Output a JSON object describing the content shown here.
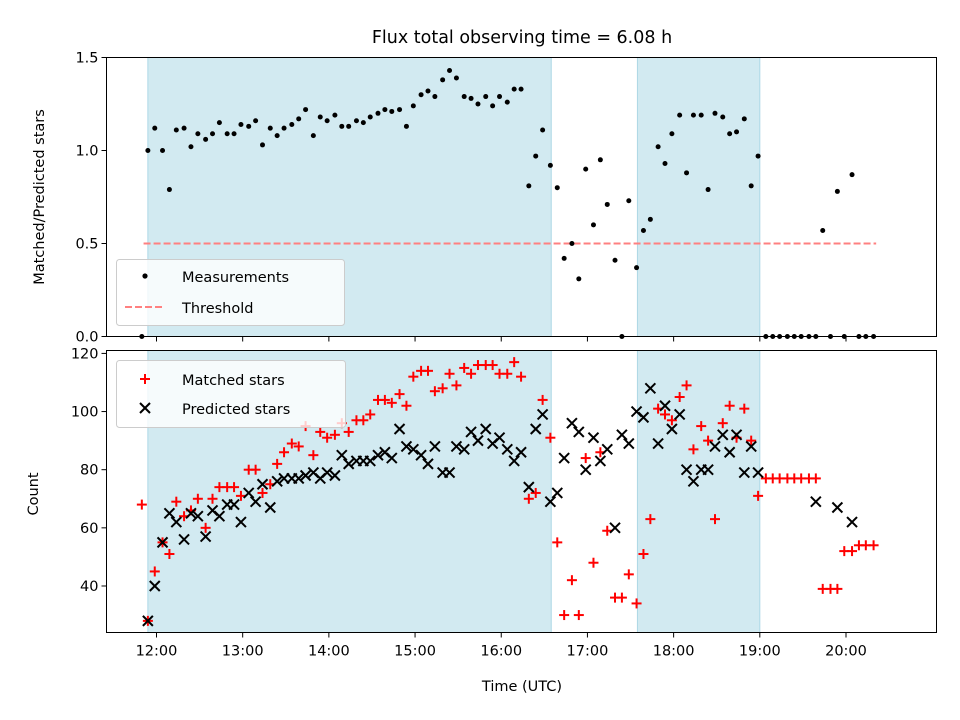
{
  "chart_data": [
    {
      "type": "scatter",
      "title": "Flux total observing time = 6.08 h",
      "ylabel": "Matched/Predicted stars",
      "xlabel": "",
      "xlim": [
        11.42,
        21.05
      ],
      "ylim": [
        0,
        1.5
      ],
      "xticks": [
        12,
        13,
        14,
        15,
        16,
        17,
        18,
        19,
        20
      ],
      "yticks": [
        0.0,
        0.5,
        1.0,
        1.5
      ],
      "ytick_labels": [
        "0.0",
        "0.5",
        "1.0",
        "1.5"
      ],
      "grid": false,
      "legend_position": "lower-left",
      "shaded_spans": [
        [
          11.9,
          16.58
        ],
        [
          17.58,
          19.0
        ]
      ],
      "shade_color": "#add8e6",
      "threshold": {
        "name": "Threshold",
        "y": 0.5,
        "x": [
          11.85,
          20.35
        ],
        "color": "#ff8080"
      },
      "series": [
        {
          "name": "Measurements",
          "color": "#000000",
          "x": [
            11.83,
            11.9,
            11.98,
            12.07,
            12.15,
            12.23,
            12.32,
            12.4,
            12.48,
            12.57,
            12.65,
            12.73,
            12.82,
            12.9,
            12.98,
            13.07,
            13.15,
            13.23,
            13.32,
            13.4,
            13.48,
            13.57,
            13.65,
            13.73,
            13.82,
            13.9,
            13.98,
            14.07,
            14.15,
            14.23,
            14.32,
            14.4,
            14.48,
            14.57,
            14.65,
            14.73,
            14.82,
            14.9,
            14.98,
            15.07,
            15.15,
            15.23,
            15.32,
            15.4,
            15.48,
            15.57,
            15.65,
            15.73,
            15.82,
            15.9,
            15.98,
            16.07,
            16.15,
            16.23,
            16.32,
            16.4,
            16.48,
            16.57,
            16.65,
            16.73,
            16.82,
            16.9,
            16.98,
            17.07,
            17.15,
            17.23,
            17.32,
            17.4,
            17.48,
            17.57,
            17.65,
            17.73,
            17.82,
            17.9,
            17.98,
            18.07,
            18.15,
            18.23,
            18.32,
            18.4,
            18.48,
            18.57,
            18.65,
            18.73,
            18.82,
            18.9,
            18.98,
            19.07,
            19.15,
            19.23,
            19.32,
            19.4,
            19.48,
            19.57,
            19.65,
            19.73,
            19.82,
            19.9,
            19.98,
            20.07,
            20.15,
            20.23,
            20.32
          ],
          "y": [
            0.0,
            1.0,
            1.12,
            1.0,
            0.79,
            1.11,
            1.12,
            1.02,
            1.09,
            1.06,
            1.09,
            1.15,
            1.09,
            1.09,
            1.14,
            1.13,
            1.16,
            1.03,
            1.12,
            1.08,
            1.12,
            1.14,
            1.17,
            1.22,
            1.08,
            1.18,
            1.16,
            1.19,
            1.13,
            1.13,
            1.16,
            1.15,
            1.18,
            1.2,
            1.22,
            1.21,
            1.22,
            1.13,
            1.24,
            1.3,
            1.32,
            1.29,
            1.38,
            1.43,
            1.39,
            1.29,
            1.28,
            1.25,
            1.29,
            1.24,
            1.29,
            1.26,
            1.33,
            1.33,
            0.81,
            0.97,
            1.11,
            0.92,
            0.8,
            0.42,
            0.5,
            0.31,
            0.9,
            0.6,
            0.95,
            0.71,
            0.41,
            0.0,
            0.73,
            0.37,
            0.57,
            0.63,
            1.02,
            0.93,
            1.09,
            1.19,
            0.88,
            1.19,
            1.19,
            0.79,
            1.2,
            1.18,
            1.09,
            1.1,
            1.17,
            0.81,
            0.97,
            0.0,
            0.0,
            0.0,
            0.0,
            0.0,
            0.0,
            0.0,
            0.0,
            0.57,
            0.0,
            0.78,
            0.0,
            0.87,
            0.0,
            0.0,
            0.0
          ]
        }
      ]
    },
    {
      "type": "scatter",
      "title": "",
      "ylabel": "Count",
      "xlabel": "Time (UTC)",
      "xlim": [
        11.42,
        21.05
      ],
      "ylim": [
        24,
        121
      ],
      "xticks": [
        12,
        13,
        14,
        15,
        16,
        17,
        18,
        19,
        20
      ],
      "xtick_labels": [
        "12:00",
        "13:00",
        "14:00",
        "15:00",
        "16:00",
        "17:00",
        "18:00",
        "19:00",
        "20:00"
      ],
      "yticks": [
        40,
        60,
        80,
        100,
        120
      ],
      "ytick_labels": [
        "40",
        "60",
        "80",
        "100",
        "120"
      ],
      "grid": false,
      "legend_position": "upper-left",
      "shaded_spans": [
        [
          11.9,
          16.58
        ],
        [
          17.58,
          19.0
        ]
      ],
      "series": [
        {
          "name": "Matched stars",
          "marker": "+",
          "color": "#ff0000",
          "x": [
            11.83,
            11.9,
            11.98,
            12.07,
            12.15,
            12.23,
            12.32,
            12.4,
            12.48,
            12.57,
            12.65,
            12.73,
            12.82,
            12.9,
            12.98,
            13.07,
            13.15,
            13.23,
            13.32,
            13.4,
            13.48,
            13.57,
            13.65,
            13.73,
            13.82,
            13.9,
            13.98,
            14.07,
            14.15,
            14.23,
            14.32,
            14.4,
            14.48,
            14.57,
            14.65,
            14.73,
            14.82,
            14.9,
            14.98,
            15.07,
            15.15,
            15.23,
            15.32,
            15.4,
            15.48,
            15.57,
            15.65,
            15.73,
            15.82,
            15.9,
            15.98,
            16.07,
            16.15,
            16.23,
            16.32,
            16.4,
            16.48,
            16.57,
            16.65,
            16.73,
            16.82,
            16.9,
            16.98,
            17.07,
            17.15,
            17.23,
            17.32,
            17.4,
            17.48,
            17.57,
            17.65,
            17.73,
            17.82,
            17.9,
            17.98,
            18.07,
            18.15,
            18.23,
            18.32,
            18.4,
            18.48,
            18.57,
            18.65,
            18.73,
            18.82,
            18.9,
            18.98,
            19.07,
            19.15,
            19.23,
            19.32,
            19.4,
            19.48,
            19.57,
            19.65,
            19.73,
            19.82,
            19.9,
            19.98,
            20.07,
            20.15,
            20.23,
            20.32
          ],
          "y": [
            68,
            28,
            45,
            55,
            51,
            69,
            64,
            66,
            70,
            60,
            70,
            74,
            74,
            74,
            71,
            80,
            80,
            72,
            75,
            82,
            86,
            89,
            88,
            95,
            85,
            93,
            91,
            92,
            96,
            93,
            97,
            97,
            99,
            104,
            104,
            103,
            106,
            102,
            112,
            114,
            114,
            107,
            108,
            113,
            109,
            115,
            113,
            116,
            116,
            116,
            113,
            113,
            117,
            112,
            70,
            72,
            104,
            91,
            55,
            30,
            42,
            30,
            84,
            48,
            86,
            59,
            36,
            36,
            44,
            34,
            51,
            63,
            101,
            99,
            97,
            105,
            109,
            87,
            95,
            90,
            63,
            96,
            102,
            91,
            101,
            90,
            71,
            77,
            77,
            77,
            77,
            77,
            77,
            77,
            77,
            39,
            39,
            39,
            52,
            52,
            54,
            54,
            54
          ]
        },
        {
          "name": "Predicted stars",
          "marker": "x",
          "color": "#000000",
          "x": [
            11.9,
            11.98,
            12.07,
            12.15,
            12.23,
            12.32,
            12.4,
            12.48,
            12.57,
            12.65,
            12.73,
            12.82,
            12.9,
            12.98,
            13.07,
            13.15,
            13.23,
            13.32,
            13.4,
            13.48,
            13.57,
            13.65,
            13.73,
            13.82,
            13.9,
            13.98,
            14.07,
            14.15,
            14.23,
            14.32,
            14.4,
            14.48,
            14.57,
            14.65,
            14.73,
            14.82,
            14.9,
            14.98,
            15.07,
            15.15,
            15.23,
            15.32,
            15.4,
            15.48,
            15.57,
            15.65,
            15.73,
            15.82,
            15.9,
            15.98,
            16.07,
            16.15,
            16.23,
            16.32,
            16.4,
            16.48,
            16.57,
            16.65,
            16.73,
            16.82,
            16.9,
            16.98,
            17.07,
            17.15,
            17.23,
            17.32,
            17.4,
            17.48,
            17.57,
            17.65,
            17.73,
            17.82,
            17.9,
            17.98,
            18.07,
            18.15,
            18.23,
            18.32,
            18.4,
            18.48,
            18.57,
            18.65,
            18.73,
            18.82,
            18.9,
            18.98,
            19.65,
            19.9,
            20.07
          ],
          "y": [
            28,
            40,
            55,
            65,
            62,
            56,
            65,
            64,
            57,
            66,
            64,
            68,
            68,
            62,
            72,
            69,
            75,
            67,
            76,
            77,
            77,
            77,
            78,
            79,
            77,
            79,
            78,
            85,
            82,
            83,
            83,
            83,
            85,
            86,
            84,
            94,
            88,
            87,
            85,
            82,
            88,
            79,
            79,
            88,
            87,
            93,
            90,
            94,
            89,
            91,
            87,
            83,
            86,
            74,
            94,
            99,
            69,
            72,
            84,
            96,
            93,
            80,
            91,
            83,
            87,
            60,
            92,
            89,
            100,
            98,
            108,
            89,
            102,
            94,
            99,
            80,
            76,
            80,
            80,
            88,
            92,
            86,
            92,
            79,
            88,
            79,
            69,
            67,
            62
          ]
        }
      ]
    }
  ]
}
